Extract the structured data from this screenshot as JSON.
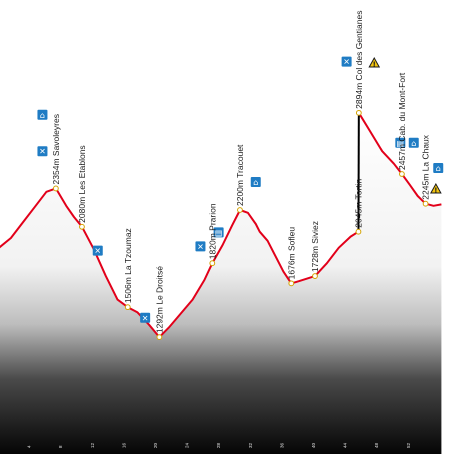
{
  "chart_data": {
    "type": "area",
    "title": "",
    "xlabel": "",
    "ylabel": "",
    "xlim": [
      0,
      56
    ],
    "ylim": [
      700,
      3100
    ],
    "x_ticks": [
      4,
      8,
      12,
      16,
      20,
      24,
      28,
      32,
      36,
      40,
      44,
      48,
      52
    ],
    "x_tick_labels": [
      "4",
      "8",
      "12",
      "16",
      "20",
      "24",
      "28",
      "32",
      "36",
      "40",
      "44",
      "48",
      "52"
    ],
    "line_color": "#e2001a",
    "climb_color": "#000000",
    "fill_top_color": "#ffffff",
    "fill_bottom_color": "#000000",
    "profile": [
      [
        0,
        1930
      ],
      [
        1.5,
        2000
      ],
      [
        3,
        2110
      ],
      [
        4.5,
        2220
      ],
      [
        6,
        2330
      ],
      [
        7.2,
        2354
      ],
      [
        8.5,
        2230
      ],
      [
        9.5,
        2150
      ],
      [
        10.5,
        2080
      ],
      [
        12,
        1920
      ],
      [
        13.5,
        1730
      ],
      [
        15,
        1560
      ],
      [
        16.3,
        1506
      ],
      [
        17.5,
        1470
      ],
      [
        19,
        1380
      ],
      [
        20.3,
        1292
      ],
      [
        21.5,
        1360
      ],
      [
        23,
        1460
      ],
      [
        24.5,
        1560
      ],
      [
        26,
        1700
      ],
      [
        27,
        1820
      ],
      [
        28.3,
        1950
      ],
      [
        29.5,
        2090
      ],
      [
        30.5,
        2200
      ],
      [
        31.5,
        2180
      ],
      [
        32.5,
        2100
      ],
      [
        33,
        2045
      ],
      [
        34,
        1980
      ],
      [
        35,
        1870
      ],
      [
        36,
        1760
      ],
      [
        37,
        1676
      ],
      [
        38,
        1692
      ],
      [
        39,
        1710
      ],
      [
        40,
        1728
      ],
      [
        41.5,
        1820
      ],
      [
        43,
        1930
      ],
      [
        44.5,
        2010
      ],
      [
        45.5,
        2045
      ],
      [
        45.55,
        2894
      ],
      [
        47,
        2760
      ],
      [
        48.5,
        2620
      ],
      [
        50,
        2530
      ],
      [
        51,
        2457
      ],
      [
        52,
        2380
      ],
      [
        53,
        2300
      ],
      [
        54,
        2245
      ],
      [
        55,
        2230
      ],
      [
        56,
        2240
      ]
    ],
    "vertical_climb_x": 45.5,
    "waypoints": [
      {
        "x": 7.2,
        "elev": 2354,
        "label": "2354m Savoleyres"
      },
      {
        "x": 10.5,
        "elev": 2080,
        "label": "2080m Les Etablons"
      },
      {
        "x": 16.3,
        "elev": 1506,
        "label": "1506m La Tzoumaz"
      },
      {
        "x": 20.3,
        "elev": 1292,
        "label": "1292m Le Droitsé"
      },
      {
        "x": 27,
        "elev": 1820,
        "label": "1820m Prarion"
      },
      {
        "x": 30.5,
        "elev": 2200,
        "label": "2200m Tracouet"
      },
      {
        "x": 37,
        "elev": 1676,
        "label": "1676m Sofleu"
      },
      {
        "x": 40,
        "elev": 1728,
        "label": "1728m Siviez"
      },
      {
        "x": 45.5,
        "elev": 2045,
        "label": "2045m Tortin"
      },
      {
        "x": 45.55,
        "elev": 2894,
        "label": "2894m Col des Gentianes"
      },
      {
        "x": 51,
        "elev": 2457,
        "label": "2457m Cab. du Mont-Fort"
      },
      {
        "x": 54,
        "elev": 2245,
        "label": "2245m La Chaux"
      }
    ],
    "icons": [
      {
        "name": "hut-icon",
        "x": 5.5,
        "elev": 2880,
        "type": "hut"
      },
      {
        "name": "food-icon",
        "x": 5.5,
        "elev": 2620,
        "type": "food"
      },
      {
        "name": "food-icon",
        "x": 12.5,
        "elev": 1910,
        "type": "food"
      },
      {
        "name": "food-icon",
        "x": 18.5,
        "elev": 1430,
        "type": "food"
      },
      {
        "name": "food-icon",
        "x": 25.5,
        "elev": 1940,
        "type": "food"
      },
      {
        "name": "lift-icon",
        "x": 27.8,
        "elev": 2040,
        "type": "lift"
      },
      {
        "name": "hut-icon",
        "x": 32.5,
        "elev": 2400,
        "type": "hut"
      },
      {
        "name": "food-icon",
        "x": 44,
        "elev": 3260,
        "type": "food"
      },
      {
        "name": "warning-icon",
        "x": 47.5,
        "elev": 3250,
        "type": "warning"
      },
      {
        "name": "lift-icon",
        "x": 50.8,
        "elev": 2680,
        "type": "lift"
      },
      {
        "name": "hut-icon",
        "x": 52.5,
        "elev": 2680,
        "type": "hut"
      },
      {
        "name": "hut-icon",
        "x": 55.6,
        "elev": 2500,
        "type": "hut"
      },
      {
        "name": "warning-icon",
        "x": 55.3,
        "elev": 2350,
        "type": "warning"
      }
    ]
  }
}
